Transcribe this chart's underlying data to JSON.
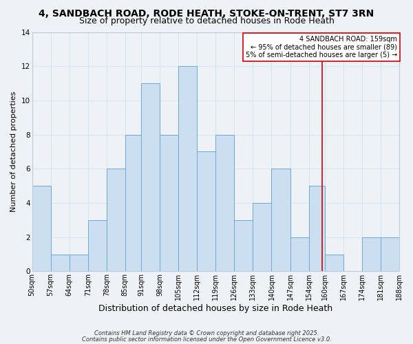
{
  "title": "4, SANDBACH ROAD, RODE HEATH, STOKE-ON-TRENT, ST7 3RN",
  "subtitle": "Size of property relative to detached houses in Rode Heath",
  "xlabel": "Distribution of detached houses by size in Rode Heath",
  "ylabel": "Number of detached properties",
  "bar_edges": [
    50,
    57,
    64,
    71,
    78,
    85,
    91,
    98,
    105,
    112,
    119,
    126,
    133,
    140,
    147,
    154,
    160,
    167,
    174,
    181,
    188
  ],
  "bar_heights": [
    5,
    1,
    1,
    3,
    6,
    8,
    11,
    8,
    12,
    7,
    8,
    3,
    4,
    6,
    2,
    5,
    1,
    0,
    2,
    2
  ],
  "bar_color": "#ccdff0",
  "bar_edgecolor": "#6aaad4",
  "property_line_x": 159,
  "property_line_color": "#cc0000",
  "legend_title": "4 SANDBACH ROAD: 159sqm",
  "legend_line1": "← 95% of detached houses are smaller (89)",
  "legend_line2": "5% of semi-detached houses are larger (5) →",
  "ylim": [
    0,
    14
  ],
  "tick_labels": [
    "50sqm",
    "57sqm",
    "64sqm",
    "71sqm",
    "78sqm",
    "85sqm",
    "91sqm",
    "98sqm",
    "105sqm",
    "112sqm",
    "119sqm",
    "126sqm",
    "133sqm",
    "140sqm",
    "147sqm",
    "154sqm",
    "160sqm",
    "167sqm",
    "174sqm",
    "181sqm",
    "188sqm"
  ],
  "footnote1": "Contains HM Land Registry data © Crown copyright and database right 2025.",
  "footnote2": "Contains public sector information licensed under the Open Government Licence v3.0.",
  "bg_color": "#eef2f7",
  "grid_color": "#d8e4f0",
  "title_fontsize": 10,
  "subtitle_fontsize": 9,
  "xlabel_fontsize": 9,
  "ylabel_fontsize": 8,
  "tick_fontsize": 7,
  "legend_fontsize": 7,
  "footnote_fontsize": 6
}
